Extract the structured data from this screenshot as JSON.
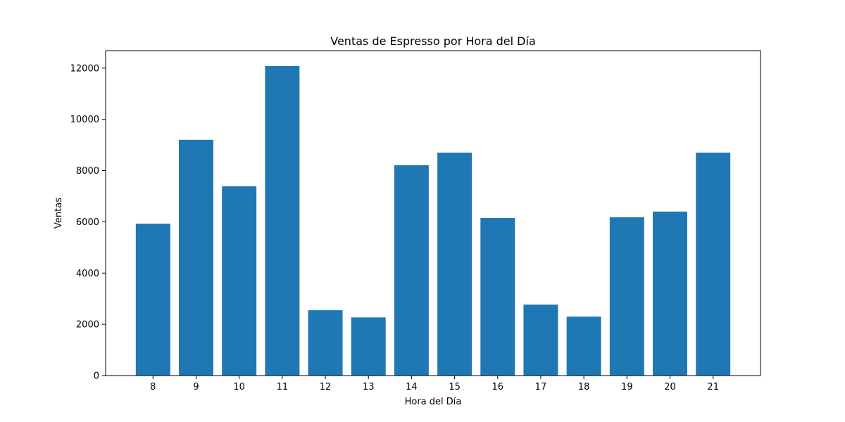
{
  "chart_data": {
    "type": "bar",
    "title": "Ventas de Espresso por Hora del Día",
    "xlabel": "Hora del Día",
    "ylabel": "Ventas",
    "categories": [
      "8",
      "9",
      "10",
      "11",
      "12",
      "13",
      "14",
      "15",
      "16",
      "17",
      "18",
      "19",
      "20",
      "21"
    ],
    "values": [
      5930,
      9200,
      7390,
      12080,
      2550,
      2270,
      8210,
      8700,
      6150,
      2770,
      2300,
      6180,
      6400,
      8700
    ],
    "ylim": [
      0,
      12680
    ],
    "yticks": [
      0,
      2000,
      4000,
      6000,
      8000,
      10000,
      12000
    ],
    "grid": false,
    "legend": "none",
    "bar_color": "#1f77b4",
    "axis_color": "#000000"
  }
}
